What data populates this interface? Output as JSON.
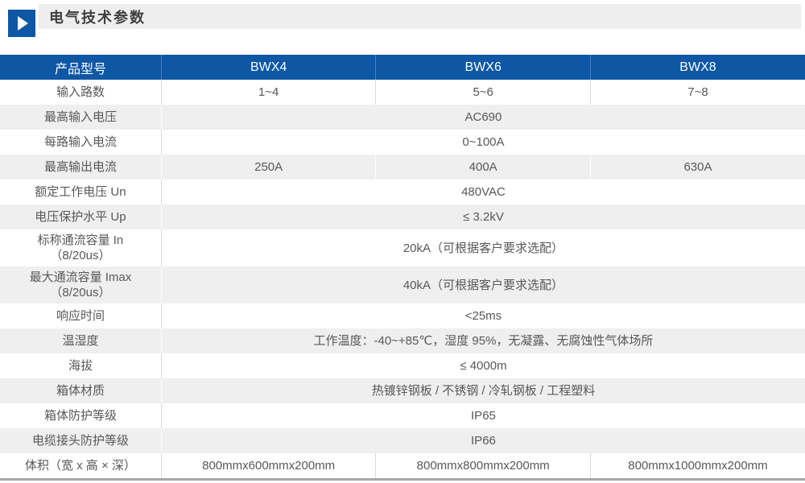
{
  "section": {
    "title": "电气技术参数"
  },
  "table": {
    "header": {
      "label": "产品型号",
      "models": [
        "BWX4",
        "BWX6",
        "BWX8"
      ]
    },
    "rows": [
      {
        "label": "输入路数",
        "values": [
          "1~4",
          "5~6",
          "7~8"
        ]
      },
      {
        "label": "最高输入电压",
        "value": "AC690"
      },
      {
        "label": "每路输入电流",
        "value": "0~100A"
      },
      {
        "label": "最高输出电流",
        "values": [
          "250A",
          "400A",
          "630A"
        ]
      },
      {
        "label": "额定工作电压 Un",
        "value": "480VAC"
      },
      {
        "label": "电压保护水平 Up",
        "value": "≤ 3.2kV"
      },
      {
        "label": "标称通流容量 In",
        "label2": "（8/20us）",
        "tall": true,
        "value": "20kA（可根据客户要求选配）"
      },
      {
        "label": "最大通流容量 Imax",
        "label2": "（8/20us）",
        "tall": true,
        "value": "40kA（可根据客户要求选配）"
      },
      {
        "label": "响应时间",
        "value": "<25ms"
      },
      {
        "label": "温湿度",
        "value": "工作温度：-40~+85℃，湿度 95%，无凝露、无腐蚀性气体场所"
      },
      {
        "label": "海拔",
        "value": "≤ 4000m"
      },
      {
        "label": "箱体材质",
        "value": "热镀锌钢板 / 不锈钢 / 冷轧钢板 / 工程塑料"
      },
      {
        "label": "箱体防护等级",
        "value": "IP65"
      },
      {
        "label": "电缆接头防护等级",
        "value": "IP66"
      },
      {
        "label": "体积（宽 x 高 × 深）",
        "values": [
          "800mmx600mmx200mm",
          "800mmx800mmx200mm",
          "800mmx1000mmx200mm"
        ]
      }
    ]
  },
  "colors": {
    "accent_blue": "#0d57a5",
    "row_alt_gray": "#efefef",
    "title_strip_gray": "#eeeeee",
    "body_text": "#595757",
    "table_bottom_border": "#a8a8a8"
  }
}
